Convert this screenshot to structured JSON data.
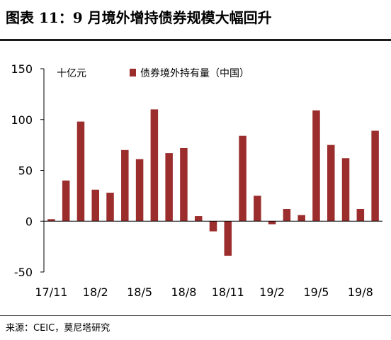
{
  "title": "图表 11：9 月境外增持债券规模大幅回升",
  "source": "来源：CEIC，莫尼塔研究",
  "chart_data": {
    "type": "bar",
    "unit_label": "十亿元",
    "legend": "债券境外持有量（中国）",
    "legend_position": "top-center",
    "grid": false,
    "color": "#9b2d2d",
    "ylim": [
      -50,
      150
    ],
    "yticks": [
      "150",
      "100",
      "50",
      "0",
      "-50"
    ],
    "xtick_labels": [
      "17/11",
      "18/2",
      "18/5",
      "18/8",
      "18/11",
      "19/2",
      "19/5",
      "19/8"
    ],
    "categories": [
      "17/11",
      "17/12",
      "18/1",
      "18/2",
      "18/3",
      "18/4",
      "18/5",
      "18/6",
      "18/7",
      "18/8",
      "18/9",
      "18/10",
      "18/11",
      "18/12",
      "19/1",
      "19/2",
      "19/3",
      "19/4",
      "19/5",
      "19/6",
      "19/7",
      "19/8",
      "19/9"
    ],
    "values": [
      2,
      40,
      98,
      31,
      28,
      70,
      61,
      110,
      67,
      72,
      5,
      -10,
      -34,
      84,
      25,
      -3,
      12,
      6,
      109,
      75,
      62,
      12,
      89
    ]
  }
}
